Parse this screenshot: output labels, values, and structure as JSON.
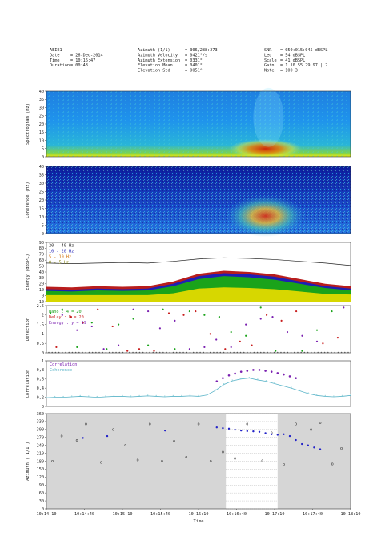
{
  "header": {
    "col1": [
      {
        "k": "AEIE1",
        "v": ""
      },
      {
        "k": "Date",
        "v": "= 26-Dec-2014"
      },
      {
        "k": "Time",
        "v": "= 10:16:47"
      },
      {
        "k": "Duration",
        "v": "= 00:48"
      }
    ],
    "col2": [
      {
        "k": "Azimuth (1/1)",
        "v": "= 306/288:273"
      },
      {
        "k": "Azimuth Velocity",
        "v": "= 0421°/s"
      },
      {
        "k": "Azimuth Extension",
        "v": "= 0331°"
      },
      {
        "k": "Elevation Mean",
        "v": "= 0401°"
      },
      {
        "k": "Elevation Std",
        "v": "= 0051°"
      }
    ],
    "col3": [
      {
        "k": "SNR",
        "v": "= 050:015:045 dBSPL"
      },
      {
        "k": "Leq",
        "v": "= 54 dBSPL"
      },
      {
        "k": "Scale",
        "v": "= 41 dBSPL"
      },
      {
        "k": "Gain",
        "v": "= 1 10 55 29 97 | 2"
      },
      {
        "k": "Note",
        "v": "= 100 3"
      }
    ]
  },
  "colors": {
    "energy_band1": "#1f1fb4",
    "energy_band2": "#1aa31a",
    "energy_band3": "#d7d700",
    "energy_band4": "#b81d1d",
    "energy_line": "#222222",
    "corr_marker": "#7a1fb0",
    "corr_line": "#5ab4c8",
    "az_marker_gray": "#888888",
    "az_marker_blue": "#2323c8",
    "az_shade": "#d6d6d6"
  },
  "chart_data": [
    {
      "type": "heatmap",
      "ylabel": "Spectrogram (Hz)",
      "ylim": [
        0,
        40
      ],
      "yticks": [
        0,
        5,
        10,
        15,
        20,
        25,
        30,
        35,
        40
      ],
      "colormap": "jet",
      "hotspots": [
        {
          "t_start": "10:16:40",
          "t_end": "10:17:20",
          "f_low": 0,
          "f_high": 14,
          "level": "high"
        }
      ]
    },
    {
      "type": "heatmap",
      "ylabel": "Coherence (Hz)",
      "ylim": [
        0,
        40
      ],
      "yticks": [
        0,
        5,
        10,
        15,
        20,
        25,
        30,
        35,
        40
      ],
      "colormap": "jet",
      "hotspots": [
        {
          "t_start": "10:16:45",
          "t_end": "10:17:20",
          "f_low": 0,
          "f_high": 12,
          "level": "high"
        }
      ]
    },
    {
      "type": "area",
      "ylabel": "Energy (dBSPL)",
      "ylim": [
        -10,
        90
      ],
      "yticks": [
        -10,
        0,
        10,
        20,
        30,
        40,
        50,
        60,
        70,
        80,
        90
      ],
      "legend": [
        "20 - 40 Hz",
        "10 - 20 Hz",
        "5 - 10 Hz",
        "0 - 5 Hz"
      ],
      "x": [
        "10:14:10",
        "10:14:40",
        "10:15:10",
        "10:15:40",
        "10:16:10",
        "10:16:25",
        "10:16:40",
        "10:16:55",
        "10:17:10",
        "10:17:25",
        "10:17:40",
        "10:18:10",
        "10:18:40"
      ],
      "series": [
        {
          "name": "20 - 40 Hz",
          "values": [
            55,
            54,
            55,
            56,
            55,
            58,
            62,
            64,
            63,
            61,
            58,
            55,
            51
          ]
        },
        {
          "name": "10 - 20 Hz",
          "values": [
            11,
            10,
            12,
            11,
            12,
            20,
            33,
            38,
            36,
            32,
            24,
            16,
            12
          ]
        },
        {
          "name": "5 - 10 Hz",
          "values": [
            8,
            7,
            9,
            8,
            9,
            16,
            28,
            33,
            31,
            27,
            20,
            13,
            9
          ]
        },
        {
          "name": "0 - 5 Hz",
          "values": [
            1,
            1,
            1,
            1,
            1,
            4,
            12,
            14,
            13,
            11,
            7,
            3,
            2
          ]
        }
      ]
    },
    {
      "type": "scatter",
      "ylabel": "Detection",
      "ylim": [
        0,
        2.5
      ],
      "yticks": [
        0,
        0.5,
        1,
        1.5,
        2,
        2.5
      ],
      "legend": [
        "Nano : 4 = 20",
        "Delay : D = 20",
        "Energy : y = 19"
      ],
      "x_count": 90,
      "rows": [
        {
          "name": "Nano",
          "values": [
            2.1,
            0.2,
            2.3,
            1.9,
            0.1,
            2.2,
            1.6,
            0.4,
            2.0,
            2.4,
            1.2,
            0.3,
            1.8,
            2.2,
            0.9,
            0.1,
            2.3,
            1.5,
            0.2,
            1.1
          ]
        },
        {
          "name": "Delay",
          "values": [
            1.9,
            0.1,
            2.0,
            0.6,
            2.2,
            0.3,
            1.4,
            2.1,
            0.2,
            1.7,
            0.8,
            2.3,
            0.1,
            1.0,
            2.0,
            0.5,
            1.6,
            0.2,
            2.2,
            0.4
          ]
        },
        {
          "name": "Energy",
          "values": [
            1.4,
            2.2,
            0.3,
            1.8,
            0.6,
            1.2,
            2.3,
            0.2,
            1.5,
            0.9,
            2.0,
            0.4,
            1.7,
            0.3,
            1.1,
            2.4,
            0.2,
            1.3,
            0.7,
            1.9
          ]
        }
      ]
    },
    {
      "type": "line",
      "ylabel": "Correlation",
      "ylim": [
        0,
        1
      ],
      "yticks": [
        0,
        0.2,
        0.4,
        0.6,
        0.8,
        1
      ],
      "yticklabels": [
        "0",
        "0,2",
        "0,4",
        "0,6",
        "0,8",
        "1"
      ],
      "legend": [
        "Correlation",
        "Coherence"
      ],
      "series": [
        {
          "name": "Correlation",
          "x_range": [
            0.56,
            0.82
          ],
          "values": [
            0.55,
            0.62,
            0.68,
            0.72,
            0.76,
            0.78,
            0.8,
            0.8,
            0.78,
            0.76,
            0.73,
            0.7,
            0.66,
            0.62
          ]
        },
        {
          "name": "Coherence",
          "values": [
            0.19,
            0.2,
            0.2,
            0.21,
            0.22,
            0.21,
            0.2,
            0.21,
            0.22,
            0.22,
            0.21,
            0.22,
            0.23,
            0.22,
            0.21,
            0.22,
            0.22,
            0.23,
            0.22,
            0.25,
            0.35,
            0.48,
            0.56,
            0.6,
            0.62,
            0.58,
            0.55,
            0.5,
            0.45,
            0.4,
            0.34,
            0.28,
            0.24,
            0.22,
            0.21,
            0.22,
            0.24
          ]
        }
      ]
    },
    {
      "type": "scatter",
      "ylabel": "Azimuth ( 1/1 )",
      "xlabel": "Time",
      "ylim": [
        0,
        360
      ],
      "yticks": [
        0,
        30,
        60,
        90,
        120,
        150,
        180,
        210,
        240,
        270,
        300,
        330,
        360
      ],
      "xticks": [
        "10:14:10",
        "10:14:40",
        "10:15:10",
        "10:15:40",
        "10:16:10",
        "10:16:40",
        "10:17:10",
        "10:17:40",
        "10:18:10"
      ],
      "gray_points": [
        [
          0.02,
          180
        ],
        [
          0.05,
          275
        ],
        [
          0.1,
          258
        ],
        [
          0.13,
          320
        ],
        [
          0.18,
          175
        ],
        [
          0.22,
          300
        ],
        [
          0.26,
          240
        ],
        [
          0.3,
          185
        ],
        [
          0.34,
          320
        ],
        [
          0.38,
          180
        ],
        [
          0.42,
          255
        ],
        [
          0.46,
          195
        ],
        [
          0.5,
          320
        ],
        [
          0.54,
          180
        ],
        [
          0.58,
          215
        ],
        [
          0.62,
          190
        ],
        [
          0.66,
          320
        ],
        [
          0.71,
          181
        ],
        [
          0.74,
          288
        ],
        [
          0.78,
          168
        ],
        [
          0.82,
          320
        ],
        [
          0.87,
          300
        ],
        [
          0.9,
          325
        ],
        [
          0.94,
          170
        ],
        [
          0.97,
          228
        ]
      ],
      "blue_points": [
        [
          0.12,
          268
        ],
        [
          0.2,
          275
        ],
        [
          0.39,
          296
        ],
        [
          0.56,
          308
        ],
        [
          0.58,
          305
        ],
        [
          0.6,
          303
        ],
        [
          0.62,
          299
        ],
        [
          0.64,
          296
        ],
        [
          0.66,
          294
        ],
        [
          0.68,
          293
        ],
        [
          0.7,
          291
        ],
        [
          0.72,
          286
        ],
        [
          0.74,
          282
        ],
        [
          0.76,
          280
        ],
        [
          0.78,
          282
        ],
        [
          0.8,
          275
        ],
        [
          0.82,
          260
        ],
        [
          0.84,
          245
        ],
        [
          0.86,
          240
        ],
        [
          0.88,
          232
        ],
        [
          0.9,
          225
        ]
      ]
    }
  ]
}
